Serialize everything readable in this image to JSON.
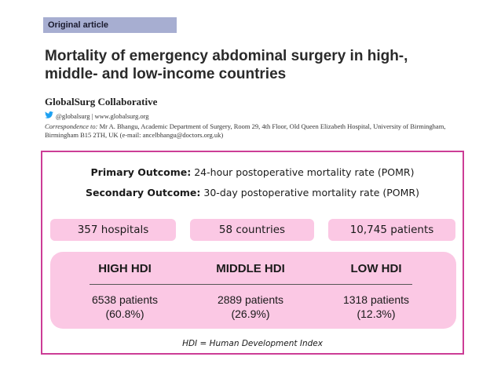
{
  "header": {
    "badge": "Original article",
    "title": "Mortality of emergency abdominal surgery in high-, middle- and low-income countries",
    "authors": "GlobalSurg Collaborative",
    "twitter_line": "@globalsurg | www.globalsurg.org",
    "correspondence_label": "Correspondence to:",
    "correspondence_text": "Mr A. Bhangu, Academic Department of Surgery, Room 29, 4th Floor, Old Queen Elizabeth Hospital, University of Birmingham, Birmingham B15 2TH, UK (e-mail: ancelbhangu@doctors.org.uk)"
  },
  "summary": {
    "primary_label": "Primary Outcome:",
    "primary_text": "24-hour postoperative mortality rate (POMR)",
    "secondary_label": "Secondary Outcome:",
    "secondary_text": "30-day postoperative mortality rate (POMR)",
    "stats": [
      "357 hospitals",
      "58 countries",
      "10,745 patients"
    ],
    "groups": [
      {
        "name": "HIGH HDI",
        "patients": "6538 patients",
        "percent": "(60.8%)"
      },
      {
        "name": "MIDDLE HDI",
        "patients": "2889 patients",
        "percent": "(26.9%)"
      },
      {
        "name": "LOW HDI",
        "patients": "1318 patients",
        "percent": "(12.3%)"
      }
    ],
    "footnote": "HDI = Human Development Index"
  },
  "colors": {
    "badge_bg": "#a7aed1",
    "box_border": "#cc3d96",
    "pill_bg": "#fbc8e4",
    "twitter_blue": "#1da1f2"
  },
  "icons": [
    "twitter-bird-icon"
  ]
}
